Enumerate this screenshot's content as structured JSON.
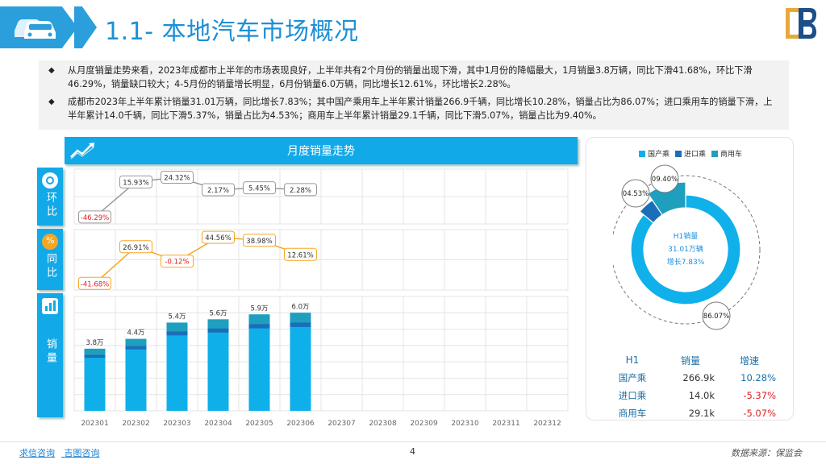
{
  "header": {
    "title": "1.1- 本地汽车市场概况",
    "brand_color": "#2b9fdc"
  },
  "summary": {
    "bullets": [
      "从月度销量走势来看，2023年成都市上半年的市场表现良好，上半年共有2个月份的销量出现下滑，其中1月份的降幅最大，1月销量3.8万辆，同比下滑41.68%，环比下滑46.29%，销量缺口较大；4-5月份的销量增长明显，6月份销量6.0万辆，同比增长12.61%，环比增长2.28%。",
      "成都市2023年上半年累计销量31.01万辆，同比增长7.83%；其中国产乘用车上半年累计销量266.9千辆，同比增长10.28%，销量占比为86.07%；进口乘用车的销量下滑，上半年累计14.0千辆，同比下滑5.37%，销量占比为4.53%；商用车上半年累计销量29.1千辆，同比下滑5.07%，销量占比为9.40%。"
    ]
  },
  "panel": {
    "title": "月度销量走势",
    "tabs": {
      "mom": "环比",
      "yoy": "同比",
      "sales": "销量"
    }
  },
  "chart_data": {
    "type": "bar",
    "categories": [
      "202301",
      "202302",
      "202303",
      "202304",
      "202305",
      "202306",
      "202307",
      "202308",
      "202309",
      "202310",
      "202311",
      "202312"
    ],
    "sales": {
      "values": [
        3.8,
        4.4,
        5.4,
        5.6,
        5.9,
        6.0
      ],
      "labels": [
        "3.8万",
        "4.4万",
        "5.4万",
        "5.6万",
        "5.9万",
        "6.0万"
      ],
      "ylim": [
        0,
        7
      ]
    },
    "mom": {
      "values": [
        -46.29,
        15.93,
        24.32,
        2.17,
        5.45,
        2.28
      ],
      "labels": [
        "-46.29%",
        "15.93%",
        "24.32%",
        "2.17%",
        "5.45%",
        "2.28%"
      ],
      "color": "#9a9a9a"
    },
    "yoy": {
      "values": [
        -41.68,
        26.91,
        -0.12,
        44.56,
        38.98,
        12.61
      ],
      "labels": [
        "-41.68%",
        "26.91%",
        "-0.12%",
        "44.56%",
        "38.98%",
        "12.61%"
      ],
      "color": "#f5a623"
    },
    "colors": {
      "domestic": "#0fb0ea",
      "import": "#1a6fb8",
      "commercial": "#1f9fbe",
      "negative": "#e02020"
    }
  },
  "donut": {
    "legend": [
      "国产乘",
      "进口乘",
      "商用车"
    ],
    "shares": [
      86.07,
      4.53,
      9.4
    ],
    "labels": [
      "86.07%",
      "04.53%",
      "09.40%"
    ],
    "center": [
      "H1销量",
      "31.01万辆",
      "增长7.83%"
    ],
    "colors": [
      "#10b0ea",
      "#1a6fb8",
      "#1f9fbe"
    ]
  },
  "h1_table": {
    "headers": [
      "H1",
      "销量",
      "增速"
    ],
    "rows": [
      {
        "name": "国产乘",
        "sales": "266.9k",
        "growth": "10.28%",
        "negative": false
      },
      {
        "name": "进口乘",
        "sales": "14.0k",
        "growth": "-5.37%",
        "negative": true
      },
      {
        "name": "商用车",
        "sales": "29.1k",
        "growth": "-5.07%",
        "negative": true
      }
    ]
  },
  "footer": {
    "links": [
      "求信咨询",
      "吉图咨询"
    ],
    "page": "4",
    "source": "数据来源：保监会"
  }
}
